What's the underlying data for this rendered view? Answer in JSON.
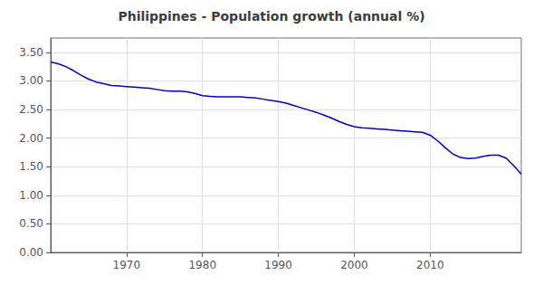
{
  "chart_data": {
    "type": "line",
    "title": "Philippines - Population growth (annual %)",
    "x": [
      1960,
      1961,
      1962,
      1963,
      1964,
      1965,
      1966,
      1967,
      1968,
      1969,
      1970,
      1971,
      1972,
      1973,
      1974,
      1975,
      1976,
      1977,
      1978,
      1979,
      1980,
      1981,
      1982,
      1983,
      1984,
      1985,
      1986,
      1987,
      1988,
      1989,
      1990,
      1991,
      1992,
      1993,
      1994,
      1995,
      1996,
      1997,
      1998,
      1999,
      2000,
      2001,
      2002,
      2003,
      2004,
      2005,
      2006,
      2007,
      2008,
      2009,
      2010,
      2011,
      2012,
      2013,
      2014,
      2015,
      2016,
      2017,
      2018,
      2019,
      2020,
      2021,
      2022
    ],
    "values": [
      3.33,
      3.3,
      3.25,
      3.18,
      3.1,
      3.03,
      2.98,
      2.95,
      2.92,
      2.91,
      2.9,
      2.89,
      2.88,
      2.87,
      2.85,
      2.83,
      2.82,
      2.82,
      2.81,
      2.78,
      2.74,
      2.73,
      2.72,
      2.72,
      2.72,
      2.72,
      2.71,
      2.7,
      2.68,
      2.66,
      2.64,
      2.61,
      2.57,
      2.53,
      2.49,
      2.45,
      2.4,
      2.35,
      2.29,
      2.24,
      2.2,
      2.18,
      2.17,
      2.16,
      2.15,
      2.14,
      2.13,
      2.12,
      2.11,
      2.1,
      2.05,
      1.95,
      1.83,
      1.72,
      1.66,
      1.64,
      1.65,
      1.68,
      1.7,
      1.7,
      1.65,
      1.52,
      1.37
    ],
    "color": "#0000cc",
    "xlim": [
      1960,
      2022
    ],
    "ylim": [
      0.0,
      3.75
    ],
    "xticks": [
      1970,
      1980,
      1990,
      2000,
      2010
    ],
    "yticks": [
      {
        "value": 0.0,
        "label": "0.00"
      },
      {
        "value": 0.5,
        "label": "0.50"
      },
      {
        "value": 1.0,
        "label": "1.00"
      },
      {
        "value": 1.5,
        "label": "1.50"
      },
      {
        "value": 2.0,
        "label": "2.00"
      },
      {
        "value": 2.5,
        "label": "2.50"
      },
      {
        "value": 3.0,
        "label": "3.00"
      },
      {
        "value": 3.5,
        "label": "3.50"
      }
    ],
    "grid": true
  }
}
